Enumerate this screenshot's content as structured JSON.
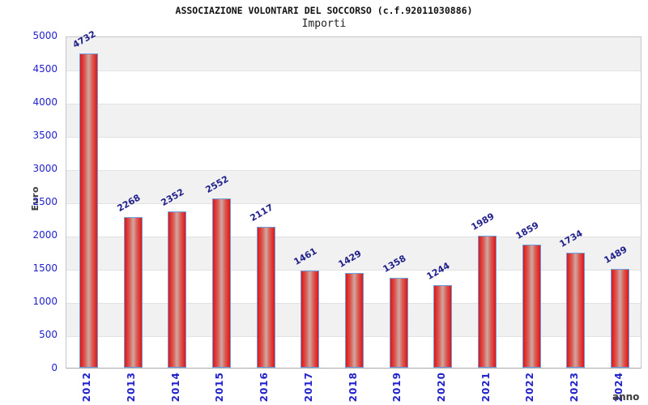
{
  "chart_data": {
    "type": "bar",
    "title": "ASSOCIAZIONE VOLONTARI DEL SOCCORSO (c.f.92011030886)",
    "subtitle": "Importi",
    "xlabel": "anno",
    "ylabel": "Euro",
    "categories": [
      "2012",
      "2013",
      "2014",
      "2015",
      "2016",
      "2017",
      "2018",
      "2019",
      "2020",
      "2021",
      "2022",
      "2023",
      "2024"
    ],
    "values": [
      4732,
      2268,
      2352,
      2552,
      2117,
      1461,
      1429,
      1358,
      1244,
      1989,
      1859,
      1734,
      1489
    ],
    "ylim": [
      0,
      5000
    ],
    "ytick_step": 500,
    "yticks": [
      0,
      500,
      1000,
      1500,
      2000,
      2500,
      3000,
      3500,
      4000,
      4500,
      5000
    ],
    "grid": "alternating-horizontal-bands",
    "legend": "none",
    "value_labels_rotation_deg": -30,
    "x_labels_rotation_deg": -90,
    "colors": {
      "bar_edge_red": "#e01616",
      "bar_center": "#cfa8a2",
      "bar_border_blue": "#6b9fe0",
      "tick_label_blue": "#2222cc",
      "value_label_navy": "#22228c",
      "axis_title_gray": "#3c3c3c",
      "band_gray": "#f1f1f1",
      "background": "#ffffff"
    }
  }
}
